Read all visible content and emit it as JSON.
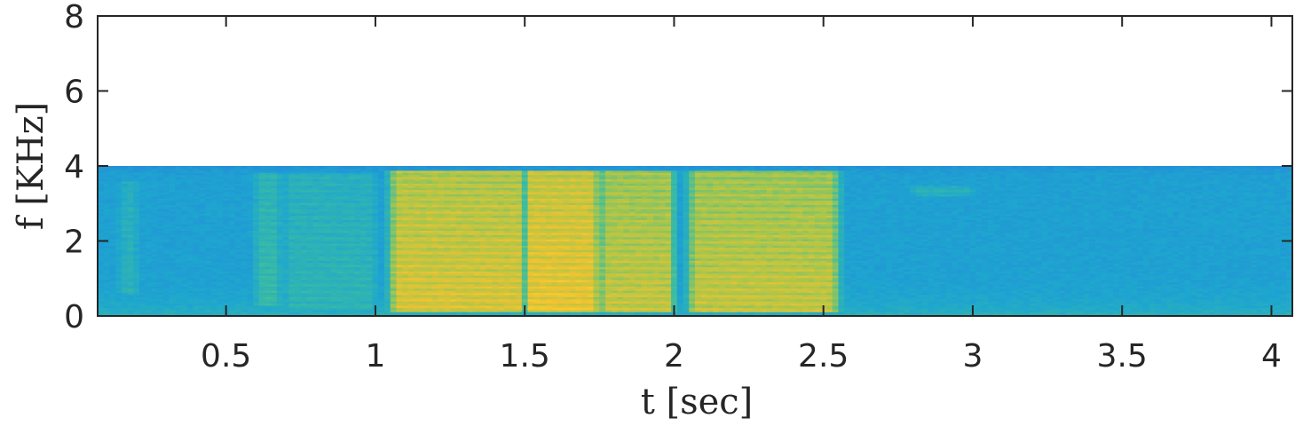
{
  "chart_data": {
    "type": "heatmap",
    "title": "",
    "xlabel": "t [sec]",
    "ylabel": "f [KHz]",
    "xlim": [
      0.07,
      4.07
    ],
    "ylim": [
      0,
      8
    ],
    "x_ticks": [
      0.5,
      1,
      1.5,
      2,
      2.5,
      3,
      3.5,
      4
    ],
    "x_tick_labels": [
      "0.5",
      "1",
      "1.5",
      "2",
      "2.5",
      "3",
      "3.5",
      "4"
    ],
    "y_ticks": [
      0,
      2,
      4,
      6,
      8
    ],
    "y_tick_labels": [
      "0",
      "2",
      "4",
      "6",
      "8"
    ],
    "grid": false,
    "colormap": "parula",
    "colors": {
      "low": "#2a6ee6",
      "mid_low": "#1ea6cf",
      "mid": "#3cbda0",
      "mid_high": "#a9c64a",
      "high": "#f3c230",
      "peak": "#fadc32"
    },
    "data_frequency_range_khz": [
      0,
      4
    ],
    "energy_segments": [
      {
        "t": [
          0.15,
          0.2
        ],
        "f": [
          0.6,
          3.6
        ],
        "level": 0.45
      },
      {
        "t": [
          0.6,
          0.68
        ],
        "f": [
          0.3,
          3.8
        ],
        "level": 0.5
      },
      {
        "t": [
          0.7,
          1.0
        ],
        "f": [
          0.2,
          3.8
        ],
        "level": 0.45
      },
      {
        "t": [
          1.05,
          1.5
        ],
        "f": [
          0.1,
          3.9
        ],
        "level": 0.85
      },
      {
        "t": [
          1.5,
          1.75
        ],
        "f": [
          0.1,
          3.9
        ],
        "level": 0.9
      },
      {
        "t": [
          1.75,
          2.0
        ],
        "f": [
          0.1,
          3.9
        ],
        "level": 0.8
      },
      {
        "t": [
          2.05,
          2.55
        ],
        "f": [
          0.1,
          3.9
        ],
        "level": 0.8
      },
      {
        "t": [
          2.8,
          3.0
        ],
        "f": [
          3.2,
          3.5
        ],
        "level": 0.45
      }
    ]
  }
}
